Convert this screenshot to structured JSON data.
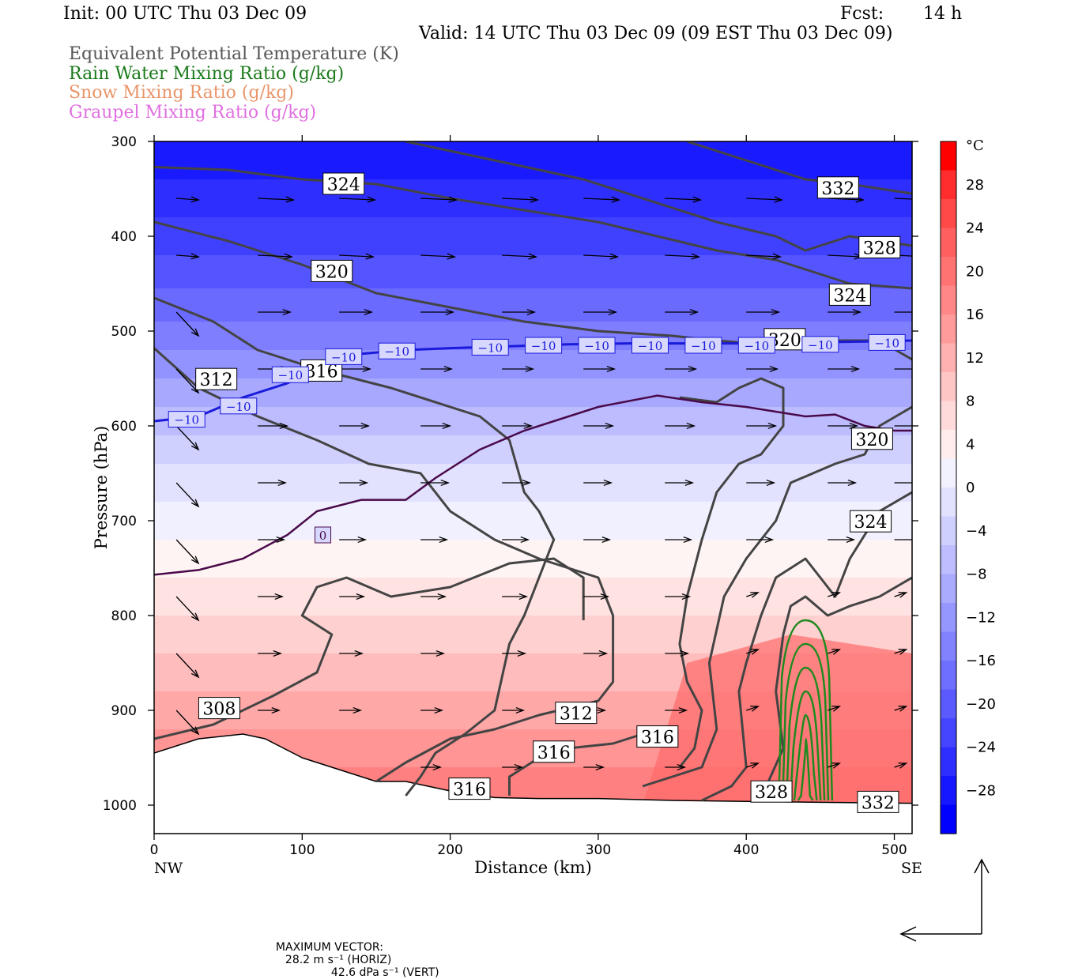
{
  "header": {
    "init": "Init: 00 UTC Thu 03 Dec 09",
    "fcst_label": "Fcst:",
    "fcst_value": "14 h",
    "valid": "Valid: 14 UTC Thu 03 Dec 09 (09 EST Thu 03 Dec 09)"
  },
  "legend": [
    {
      "text": "Equivalent Potential Temperature (K)",
      "color": "#555555"
    },
    {
      "text": "Rain Water Mixing Ratio (g/kg)",
      "color": "#1a7a1a"
    },
    {
      "text": "Snow Mixing Ratio (g/kg)",
      "color": "#e9956a"
    },
    {
      "text": "Graupel Mixing Ratio (g/kg)",
      "color": "#e070e0"
    }
  ],
  "chart_data": {
    "type": "cross-section",
    "xlabel": "Distance (km)",
    "ylabel": "Pressure (hPa)",
    "xlim": [
      0,
      512
    ],
    "ylim": [
      1030,
      300
    ],
    "x_ticks": [
      0,
      100,
      200,
      300,
      400,
      500
    ],
    "y_ticks": [
      300,
      400,
      500,
      600,
      700,
      800,
      900,
      1000
    ],
    "x_end_labels": {
      "left": "NW",
      "right": "SE"
    },
    "colorbar": {
      "unit": "°C",
      "labels": [
        "28",
        "24",
        "20",
        "16",
        "12",
        "8",
        "4",
        "0",
        "−4",
        "−8",
        "−12",
        "−16",
        "−20",
        "−24",
        "−28"
      ],
      "colors_top_to_bottom": [
        "#ff0000",
        "#ff2d2d",
        "#ff4848",
        "#ff5f5f",
        "#ff7373",
        "#ff8787",
        "#ff9b9b",
        "#ffb1b1",
        "#ffc6c6",
        "#ffdada",
        "#ffecec",
        "#f2f2ff",
        "#e2e2ff",
        "#d0d0ff",
        "#bdbdff",
        "#aaaaff",
        "#9696ff",
        "#8282ff",
        "#6e6eff",
        "#5a5aff",
        "#4545ff",
        "#2e2eff",
        "#1717ff",
        "#0000ff"
      ]
    },
    "theta_e_contours": [
      {
        "label": "308",
        "points": [
          [
            0,
            930
          ],
          [
            40,
            915
          ],
          [
            80,
            885
          ],
          [
            110,
            860
          ],
          [
            120,
            820
          ],
          [
            100,
            800
          ],
          [
            110,
            770
          ],
          [
            130,
            760
          ],
          [
            160,
            780
          ],
          [
            200,
            770
          ],
          [
            240,
            745
          ],
          [
            270,
            740
          ],
          [
            290,
            760
          ],
          [
            290,
            805
          ]
        ]
      },
      {
        "label": "312",
        "points": [
          [
            0,
            518
          ],
          [
            30,
            560
          ],
          [
            70,
            590
          ],
          [
            110,
            615
          ],
          [
            145,
            640
          ],
          [
            180,
            650
          ],
          [
            200,
            690
          ],
          [
            230,
            720
          ],
          [
            260,
            740
          ],
          [
            300,
            760
          ],
          [
            310,
            800
          ],
          [
            310,
            870
          ],
          [
            300,
            890
          ],
          [
            260,
            905
          ],
          [
            230,
            920
          ],
          [
            200,
            930
          ],
          [
            170,
            955
          ],
          [
            150,
            975
          ]
        ]
      },
      {
        "label": "316",
        "points": [
          [
            0,
            465
          ],
          [
            40,
            490
          ],
          [
            70,
            520
          ],
          [
            110,
            540
          ],
          [
            160,
            560
          ],
          [
            220,
            590
          ],
          [
            240,
            615
          ],
          [
            250,
            670
          ],
          [
            260,
            690
          ],
          [
            270,
            720
          ],
          [
            260,
            760
          ],
          [
            250,
            800
          ],
          [
            240,
            830
          ],
          [
            230,
            900
          ],
          [
            210,
            925
          ],
          [
            190,
            945
          ],
          [
            180,
            970
          ],
          [
            170,
            990
          ]
        ]
      },
      {
        "label": "316",
        "points": [
          [
            240,
            990
          ],
          [
            240,
            970
          ],
          [
            260,
            950
          ],
          [
            280,
            940
          ],
          [
            310,
            935
          ],
          [
            330,
            925
          ]
        ]
      },
      {
        "label": "320",
        "points": [
          [
            0,
            385
          ],
          [
            50,
            405
          ],
          [
            100,
            430
          ],
          [
            150,
            460
          ],
          [
            200,
            475
          ],
          [
            250,
            490
          ],
          [
            300,
            500
          ],
          [
            350,
            505
          ],
          [
            380,
            510
          ],
          [
            420,
            515
          ],
          [
            440,
            510
          ],
          [
            470,
            510
          ],
          [
            490,
            510
          ],
          [
            512,
            530
          ]
        ]
      },
      {
        "label": "324",
        "points": [
          [
            0,
            327
          ],
          [
            50,
            330
          ],
          [
            100,
            340
          ],
          [
            150,
            345
          ],
          [
            200,
            360
          ],
          [
            260,
            375
          ],
          [
            300,
            385
          ],
          [
            340,
            400
          ],
          [
            380,
            415
          ],
          [
            420,
            425
          ],
          [
            450,
            440
          ],
          [
            470,
            450
          ],
          [
            512,
            455
          ]
        ]
      },
      {
        "label": "328",
        "points": [
          [
            170,
            300
          ],
          [
            230,
            320
          ],
          [
            290,
            340
          ],
          [
            340,
            365
          ],
          [
            380,
            385
          ],
          [
            420,
            400
          ],
          [
            440,
            415
          ],
          [
            470,
            400
          ],
          [
            512,
            410
          ]
        ]
      },
      {
        "label": "332",
        "points": [
          [
            360,
            300
          ],
          [
            400,
            320
          ],
          [
            440,
            340
          ],
          [
            470,
            345
          ],
          [
            512,
            355
          ]
        ]
      },
      {
        "label": "324",
        "points": [
          [
            512,
            670
          ],
          [
            490,
            690
          ],
          [
            470,
            740
          ],
          [
            460,
            780
          ],
          [
            450,
            760
          ],
          [
            440,
            740
          ],
          [
            420,
            760
          ],
          [
            410,
            800
          ],
          [
            400,
            850
          ],
          [
            395,
            880
          ],
          [
            400,
            960
          ],
          [
            390,
            980
          ],
          [
            370,
            995
          ]
        ]
      },
      {
        "label": "328",
        "points": [
          [
            512,
            760
          ],
          [
            490,
            780
          ],
          [
            470,
            790
          ],
          [
            455,
            800
          ],
          [
            440,
            780
          ],
          [
            430,
            790
          ],
          [
            425,
            820
          ],
          [
            420,
            880
          ],
          [
            425,
            940
          ],
          [
            415,
            975
          ],
          [
            410,
            990
          ]
        ]
      },
      {
        "label": "320",
        "points": [
          [
            512,
            580
          ],
          [
            490,
            600
          ],
          [
            480,
            630
          ],
          [
            460,
            640
          ],
          [
            430,
            660
          ],
          [
            420,
            700
          ],
          [
            400,
            740
          ],
          [
            385,
            780
          ],
          [
            375,
            850
          ],
          [
            380,
            920
          ],
          [
            370,
            960
          ],
          [
            350,
            970
          ],
          [
            330,
            980
          ]
        ]
      },
      {
        "label": "",
        "points": [
          [
            355,
            570
          ],
          [
            380,
            575
          ],
          [
            395,
            560
          ],
          [
            410,
            550
          ],
          [
            425,
            560
          ],
          [
            425,
            600
          ],
          [
            410,
            630
          ],
          [
            395,
            640
          ],
          [
            380,
            670
          ],
          [
            370,
            720
          ],
          [
            360,
            780
          ],
          [
            355,
            830
          ],
          [
            360,
            870
          ],
          [
            370,
            900
          ],
          [
            365,
            940
          ],
          [
            355,
            960
          ]
        ]
      }
    ],
    "temperature_contours": [
      {
        "label": "−10",
        "points": [
          [
            0,
            595
          ],
          [
            30,
            590
          ],
          [
            60,
            570
          ],
          [
            90,
            555
          ],
          [
            110,
            540
          ],
          [
            125,
            528
          ],
          [
            140,
            524
          ],
          [
            170,
            520
          ],
          [
            200,
            518
          ],
          [
            240,
            516
          ],
          [
            280,
            514
          ],
          [
            320,
            513
          ],
          [
            360,
            513
          ],
          [
            400,
            513
          ],
          [
            440,
            512
          ],
          [
            480,
            511
          ],
          [
            512,
            510
          ]
        ]
      },
      {
        "label": "0",
        "points": [
          [
            0,
            757
          ],
          [
            30,
            752
          ],
          [
            60,
            740
          ],
          [
            90,
            715
          ],
          [
            110,
            690
          ],
          [
            140,
            678
          ],
          [
            170,
            678
          ],
          [
            190,
            655
          ],
          [
            220,
            625
          ],
          [
            250,
            605
          ],
          [
            280,
            590
          ],
          [
            300,
            580
          ],
          [
            340,
            568
          ],
          [
            370,
            575
          ],
          [
            400,
            580
          ],
          [
            420,
            585
          ],
          [
            440,
            590
          ],
          [
            460,
            588
          ],
          [
            480,
            600
          ],
          [
            500,
            605
          ],
          [
            512,
            605
          ]
        ]
      }
    ],
    "rain_water": {
      "center_km": 440,
      "top_hPa": 805,
      "bottom_hPa": 995,
      "levels": 6
    },
    "terrain": [
      [
        0,
        945
      ],
      [
        30,
        930
      ],
      [
        60,
        925
      ],
      [
        75,
        930
      ],
      [
        100,
        950
      ],
      [
        130,
        965
      ],
      [
        150,
        975
      ],
      [
        170,
        975
      ],
      [
        200,
        985
      ],
      [
        230,
        992
      ],
      [
        260,
        993
      ],
      [
        300,
        993
      ],
      [
        350,
        995
      ],
      [
        400,
        996
      ],
      [
        450,
        997
      ],
      [
        512,
        998
      ]
    ],
    "theta_e_labels": [
      {
        "text": "324",
        "x": 128,
        "p": 345
      },
      {
        "text": "320",
        "x": 120,
        "p": 437
      },
      {
        "text": "312",
        "x": 42,
        "p": 551
      },
      {
        "text": "316",
        "x": 113,
        "p": 542
      },
      {
        "text": "308",
        "x": 44,
        "p": 898
      },
      {
        "text": "312",
        "x": 285,
        "p": 903
      },
      {
        "text": "316",
        "x": 270,
        "p": 944
      },
      {
        "text": "316",
        "x": 340,
        "p": 928
      },
      {
        "text": "316",
        "x": 213,
        "p": 983
      },
      {
        "text": "332",
        "x": 462,
        "p": 349
      },
      {
        "text": "328",
        "x": 490,
        "p": 412
      },
      {
        "text": "324",
        "x": 470,
        "p": 462
      },
      {
        "text": "320",
        "x": 426,
        "p": 509
      },
      {
        "text": "320",
        "x": 485,
        "p": 614
      },
      {
        "text": "324",
        "x": 484,
        "p": 701
      },
      {
        "text": "328",
        "x": 417,
        "p": 986
      },
      {
        "text": "332",
        "x": 489,
        "p": 997
      }
    ],
    "temp_labels": [
      {
        "text": "−10",
        "x": 22,
        "p": 593
      },
      {
        "text": "−10",
        "x": 57,
        "p": 579
      },
      {
        "text": "−10",
        "x": 92,
        "p": 546
      },
      {
        "text": "−10",
        "x": 128,
        "p": 527
      },
      {
        "text": "−10",
        "x": 164,
        "p": 521
      },
      {
        "text": "−10",
        "x": 227,
        "p": 517
      },
      {
        "text": "−10",
        "x": 263,
        "p": 515
      },
      {
        "text": "−10",
        "x": 299,
        "p": 515
      },
      {
        "text": "−10",
        "x": 335,
        "p": 515
      },
      {
        "text": "−10",
        "x": 371,
        "p": 515
      },
      {
        "text": "−10",
        "x": 407,
        "p": 515
      },
      {
        "text": "−10",
        "x": 450,
        "p": 514
      },
      {
        "text": "−10",
        "x": 495,
        "p": 512
      },
      {
        "text": "0",
        "x": 114,
        "p": 715
      }
    ],
    "max_vector": {
      "label": "MAXIMUM VECTOR:",
      "horiz": "28.2 m s⁻¹ (HORIZ)",
      "vert": "42.6 dPa s⁻¹ (VERT)"
    }
  }
}
